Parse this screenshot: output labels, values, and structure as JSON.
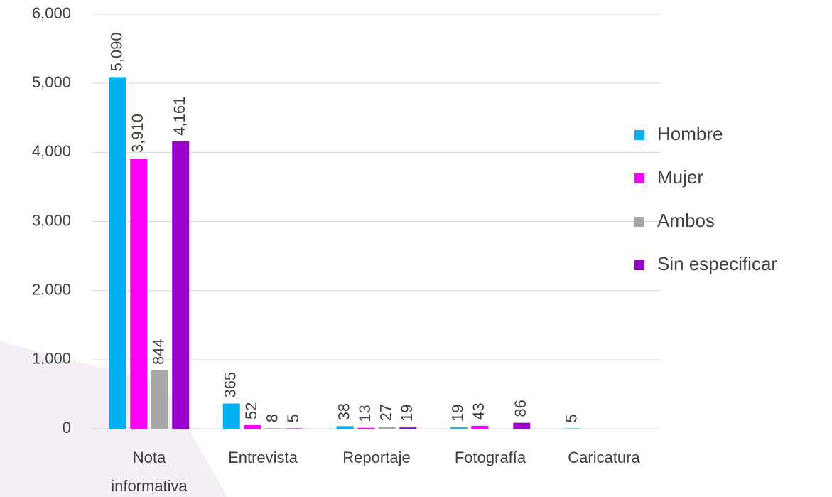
{
  "chart_data": {
    "type": "bar",
    "categories": [
      "Nota informativa",
      "Entrevista",
      "Reportaje",
      "Fotografía",
      "Caricatura"
    ],
    "series": [
      {
        "name": "Hombre",
        "color": "#00b0f0",
        "values": [
          5090,
          365,
          38,
          19,
          5
        ],
        "value_labels": [
          "5,090",
          "365",
          "38",
          "19",
          "5"
        ]
      },
      {
        "name": "Mujer",
        "color": "#ff00ff",
        "values": [
          3910,
          52,
          13,
          43,
          null
        ],
        "value_labels": [
          "3,910",
          "52",
          "13",
          "43",
          null
        ]
      },
      {
        "name": "Ambos",
        "color": "#a6a6a6",
        "values": [
          844,
          8,
          27,
          null,
          null
        ],
        "value_labels": [
          "844",
          "8",
          "27",
          null,
          null
        ]
      },
      {
        "name": "Sin especificar",
        "color": "#9900cc",
        "values": [
          4161,
          5,
          19,
          86,
          null
        ],
        "value_labels": [
          "4,161",
          "5",
          "19",
          "86",
          null
        ]
      }
    ],
    "ylim": [
      0,
      6000
    ],
    "yticks": [
      0,
      {
        "value": 1000,
        "label": "1,000"
      },
      {
        "value": 2000,
        "label": "2,000"
      },
      {
        "value": 3000,
        "label": "3,000"
      },
      {
        "value": 4000,
        "label": "4,000"
      },
      {
        "value": 5000,
        "label": "5,000"
      },
      {
        "value": 6000,
        "label": "6,000"
      }
    ],
    "grid": true,
    "legend": "right"
  }
}
